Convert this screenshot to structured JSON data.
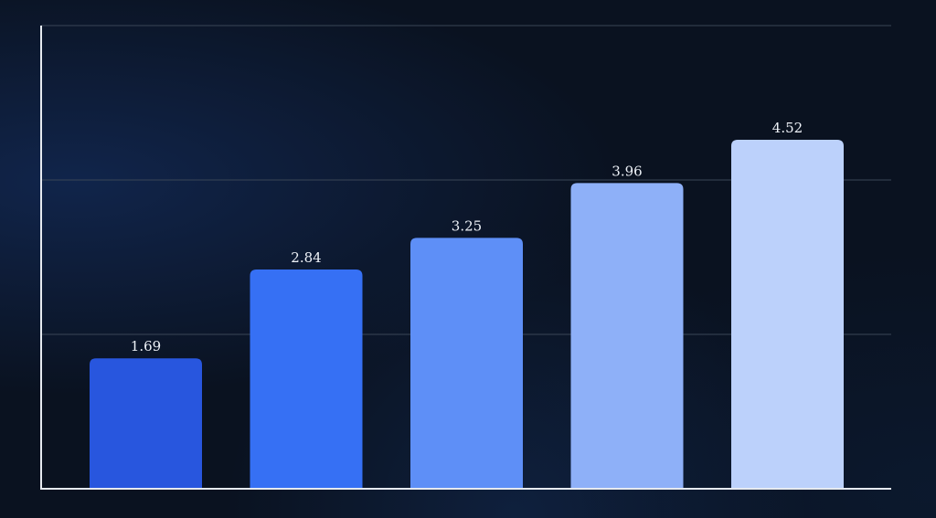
{
  "chart_data": {
    "type": "bar",
    "categories": [
      "",
      "",
      "",
      "",
      ""
    ],
    "values": [
      1.69,
      2.84,
      3.25,
      3.96,
      4.52
    ],
    "value_labels": [
      "1.69",
      "2.84",
      "3.25",
      "3.96",
      "4.52"
    ],
    "ylim": [
      0,
      6
    ],
    "grid": true,
    "gridlines": [
      2,
      4,
      6
    ],
    "title": "",
    "xlabel": "",
    "ylabel": "",
    "bar_colors": [
      "#2856de",
      "#3670f4",
      "#5e8ff7",
      "#8eb0f8",
      "#bcd1fb"
    ],
    "grid_color": "#3a4656",
    "axis_color": "#e6eaf0"
  }
}
